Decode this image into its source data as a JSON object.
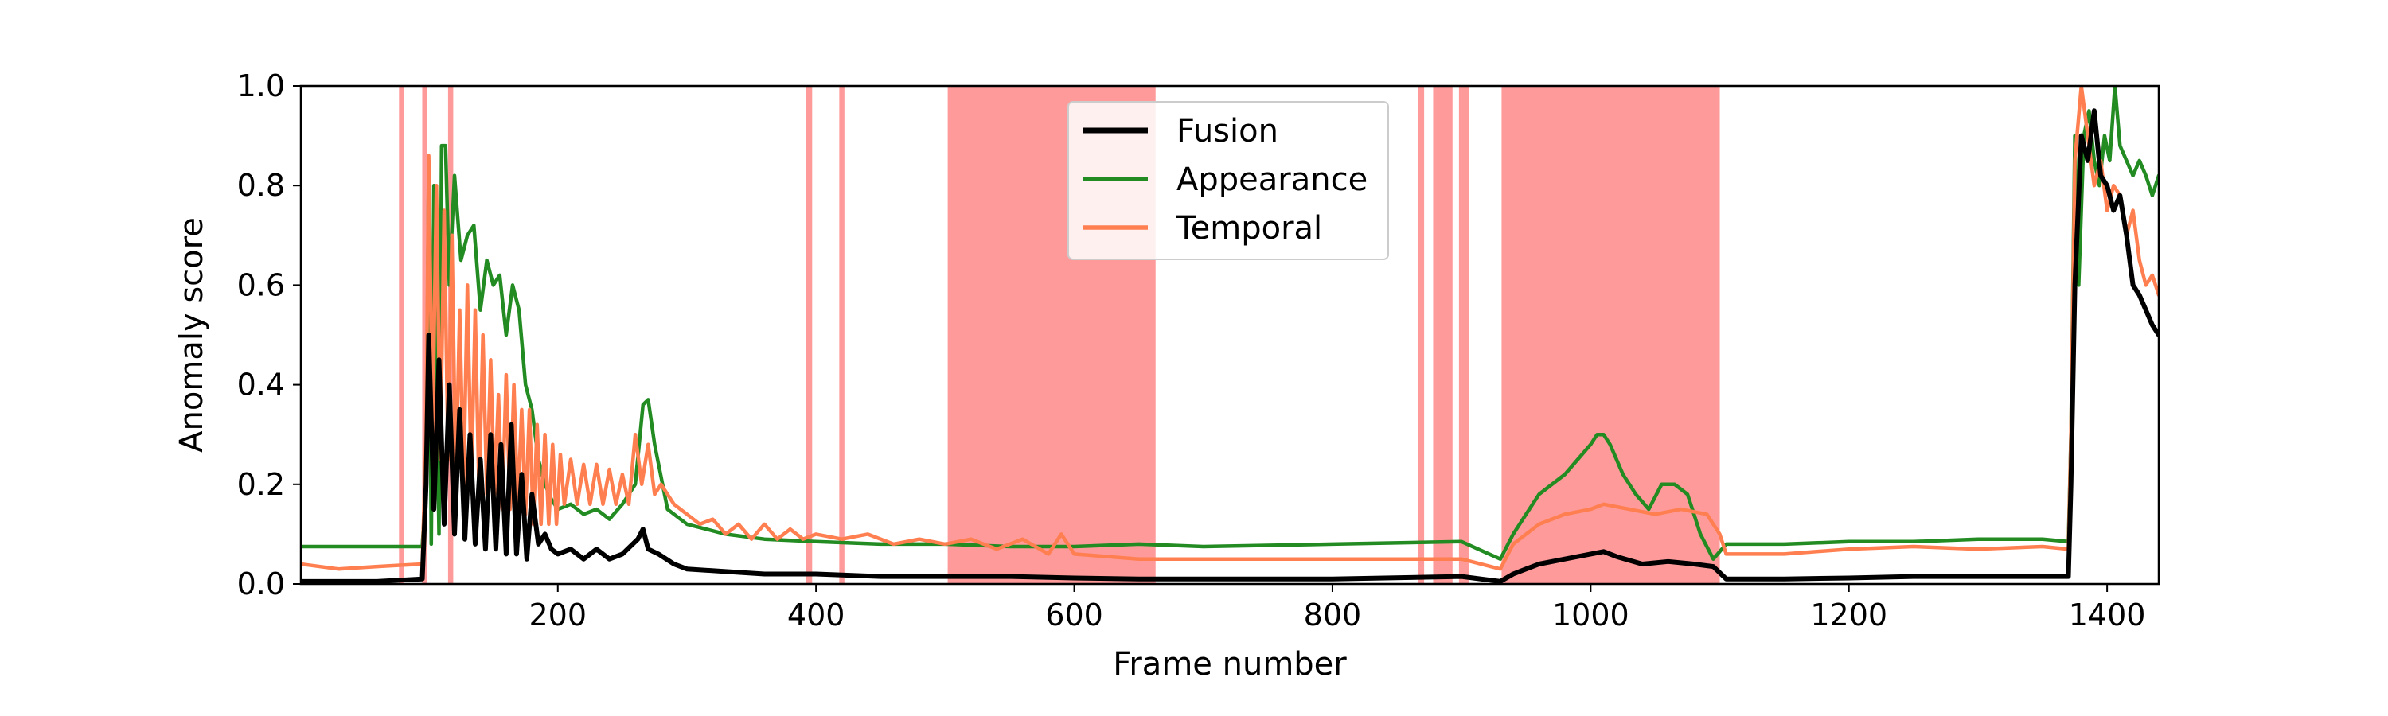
{
  "chart_data": {
    "type": "line",
    "xlabel": "Frame number",
    "ylabel": "Anomaly score",
    "xlim": [
      1,
      1440
    ],
    "ylim": [
      0,
      1.0
    ],
    "xticks": [
      200,
      400,
      600,
      800,
      1000,
      1200,
      1400
    ],
    "yticks": [
      0.0,
      0.2,
      0.4,
      0.6,
      0.8,
      1.0
    ],
    "grid": false,
    "legend_position": "top-center",
    "anomaly_color": "#fe9a9a",
    "anomaly_regions": [
      [
        77,
        81
      ],
      [
        95,
        99
      ],
      [
        115,
        119
      ],
      [
        392,
        397
      ],
      [
        418,
        422
      ],
      [
        502,
        663
      ],
      [
        866,
        871
      ],
      [
        878,
        893
      ],
      [
        898,
        906
      ],
      [
        931,
        1100
      ]
    ],
    "series": [
      {
        "name": "Fusion",
        "color": "#000000",
        "x": [
          1,
          60,
          95,
          98,
          100,
          104,
          108,
          112,
          116,
          120,
          124,
          128,
          132,
          136,
          140,
          144,
          148,
          152,
          156,
          160,
          164,
          168,
          172,
          176,
          180,
          185,
          190,
          195,
          200,
          210,
          220,
          230,
          240,
          250,
          262,
          266,
          270,
          278,
          290,
          300,
          330,
          360,
          400,
          450,
          500,
          550,
          600,
          650,
          700,
          800,
          900,
          930,
          940,
          950,
          960,
          980,
          1000,
          1010,
          1020,
          1040,
          1060,
          1080,
          1095,
          1105,
          1150,
          1200,
          1250,
          1300,
          1350,
          1370,
          1372,
          1375,
          1380,
          1385,
          1390,
          1395,
          1400,
          1405,
          1410,
          1415,
          1420,
          1425,
          1430,
          1435,
          1440
        ],
        "values": [
          0.005,
          0.005,
          0.01,
          0.2,
          0.5,
          0.15,
          0.45,
          0.12,
          0.4,
          0.1,
          0.35,
          0.09,
          0.3,
          0.08,
          0.25,
          0.07,
          0.3,
          0.07,
          0.28,
          0.06,
          0.32,
          0.06,
          0.22,
          0.05,
          0.18,
          0.08,
          0.1,
          0.07,
          0.06,
          0.07,
          0.05,
          0.07,
          0.05,
          0.06,
          0.09,
          0.11,
          0.07,
          0.06,
          0.04,
          0.03,
          0.025,
          0.02,
          0.02,
          0.015,
          0.015,
          0.015,
          0.012,
          0.01,
          0.01,
          0.01,
          0.015,
          0.005,
          0.02,
          0.03,
          0.04,
          0.05,
          0.06,
          0.065,
          0.055,
          0.04,
          0.045,
          0.04,
          0.035,
          0.01,
          0.01,
          0.012,
          0.015,
          0.015,
          0.015,
          0.015,
          0.2,
          0.6,
          0.9,
          0.85,
          0.95,
          0.82,
          0.8,
          0.75,
          0.78,
          0.7,
          0.6,
          0.58,
          0.55,
          0.52,
          0.5
        ]
      },
      {
        "name": "Appearance",
        "color": "#228b22",
        "x": [
          1,
          60,
          95,
          98,
          100,
          102,
          104,
          108,
          110,
          113,
          116,
          120,
          125,
          130,
          135,
          140,
          145,
          150,
          155,
          160,
          165,
          170,
          175,
          180,
          185,
          190,
          195,
          200,
          210,
          220,
          230,
          240,
          250,
          260,
          266,
          270,
          275,
          285,
          300,
          330,
          360,
          400,
          450,
          500,
          550,
          600,
          650,
          700,
          800,
          900,
          930,
          940,
          950,
          960,
          970,
          980,
          990,
          1000,
          1005,
          1010,
          1015,
          1025,
          1035,
          1045,
          1055,
          1065,
          1075,
          1085,
          1095,
          1105,
          1150,
          1200,
          1250,
          1300,
          1350,
          1370,
          1372,
          1375,
          1378,
          1382,
          1386,
          1390,
          1394,
          1398,
          1402,
          1406,
          1410,
          1415,
          1420,
          1425,
          1430,
          1435,
          1440
        ],
        "values": [
          0.075,
          0.075,
          0.075,
          0.2,
          0.85,
          0.08,
          0.8,
          0.1,
          0.88,
          0.88,
          0.6,
          0.82,
          0.65,
          0.7,
          0.72,
          0.55,
          0.65,
          0.6,
          0.62,
          0.5,
          0.6,
          0.55,
          0.4,
          0.35,
          0.25,
          0.2,
          0.17,
          0.15,
          0.16,
          0.14,
          0.15,
          0.13,
          0.16,
          0.2,
          0.36,
          0.37,
          0.28,
          0.15,
          0.12,
          0.1,
          0.09,
          0.085,
          0.08,
          0.08,
          0.075,
          0.075,
          0.08,
          0.075,
          0.08,
          0.085,
          0.05,
          0.1,
          0.14,
          0.18,
          0.2,
          0.22,
          0.25,
          0.28,
          0.3,
          0.3,
          0.28,
          0.22,
          0.18,
          0.15,
          0.2,
          0.2,
          0.18,
          0.1,
          0.05,
          0.08,
          0.08,
          0.085,
          0.085,
          0.09,
          0.09,
          0.085,
          0.3,
          0.9,
          0.6,
          0.9,
          0.95,
          0.85,
          0.8,
          0.9,
          0.85,
          1.0,
          0.88,
          0.85,
          0.82,
          0.85,
          0.82,
          0.78,
          0.82
        ]
      },
      {
        "name": "Temporal",
        "color": "#ff7f50",
        "x": [
          1,
          30,
          60,
          95,
          98,
          100,
          103,
          106,
          109,
          112,
          115,
          118,
          121,
          124,
          127,
          130,
          133,
          136,
          139,
          142,
          145,
          148,
          151,
          154,
          157,
          160,
          163,
          166,
          169,
          172,
          175,
          178,
          181,
          184,
          187,
          190,
          193,
          196,
          199,
          202,
          205,
          210,
          215,
          220,
          225,
          230,
          235,
          240,
          245,
          250,
          255,
          260,
          265,
          270,
          275,
          280,
          290,
          300,
          310,
          320,
          330,
          340,
          350,
          360,
          370,
          380,
          390,
          400,
          420,
          440,
          460,
          480,
          500,
          520,
          540,
          560,
          580,
          590,
          600,
          650,
          700,
          800,
          900,
          930,
          940,
          960,
          980,
          1000,
          1010,
          1030,
          1050,
          1070,
          1090,
          1100,
          1105,
          1150,
          1200,
          1250,
          1300,
          1350,
          1370,
          1372,
          1375,
          1380,
          1385,
          1390,
          1395,
          1400,
          1405,
          1410,
          1415,
          1420,
          1425,
          1430,
          1435,
          1440
        ],
        "values": [
          0.04,
          0.03,
          0.035,
          0.04,
          0.3,
          0.86,
          0.3,
          0.8,
          0.25,
          0.75,
          0.25,
          0.7,
          0.2,
          0.55,
          0.2,
          0.6,
          0.2,
          0.55,
          0.18,
          0.5,
          0.18,
          0.45,
          0.18,
          0.38,
          0.15,
          0.42,
          0.15,
          0.4,
          0.15,
          0.35,
          0.14,
          0.35,
          0.12,
          0.32,
          0.12,
          0.3,
          0.12,
          0.28,
          0.12,
          0.26,
          0.16,
          0.25,
          0.16,
          0.24,
          0.16,
          0.24,
          0.16,
          0.23,
          0.16,
          0.22,
          0.16,
          0.3,
          0.2,
          0.28,
          0.18,
          0.2,
          0.16,
          0.14,
          0.12,
          0.13,
          0.1,
          0.12,
          0.09,
          0.12,
          0.09,
          0.11,
          0.09,
          0.1,
          0.09,
          0.1,
          0.08,
          0.09,
          0.08,
          0.09,
          0.07,
          0.09,
          0.06,
          0.1,
          0.06,
          0.05,
          0.05,
          0.05,
          0.05,
          0.03,
          0.08,
          0.12,
          0.14,
          0.15,
          0.16,
          0.15,
          0.14,
          0.15,
          0.14,
          0.1,
          0.06,
          0.06,
          0.07,
          0.075,
          0.07,
          0.075,
          0.07,
          0.3,
          0.85,
          1.0,
          0.9,
          0.8,
          0.85,
          0.75,
          0.8,
          0.78,
          0.7,
          0.75,
          0.65,
          0.6,
          0.62,
          0.58
        ]
      }
    ]
  }
}
